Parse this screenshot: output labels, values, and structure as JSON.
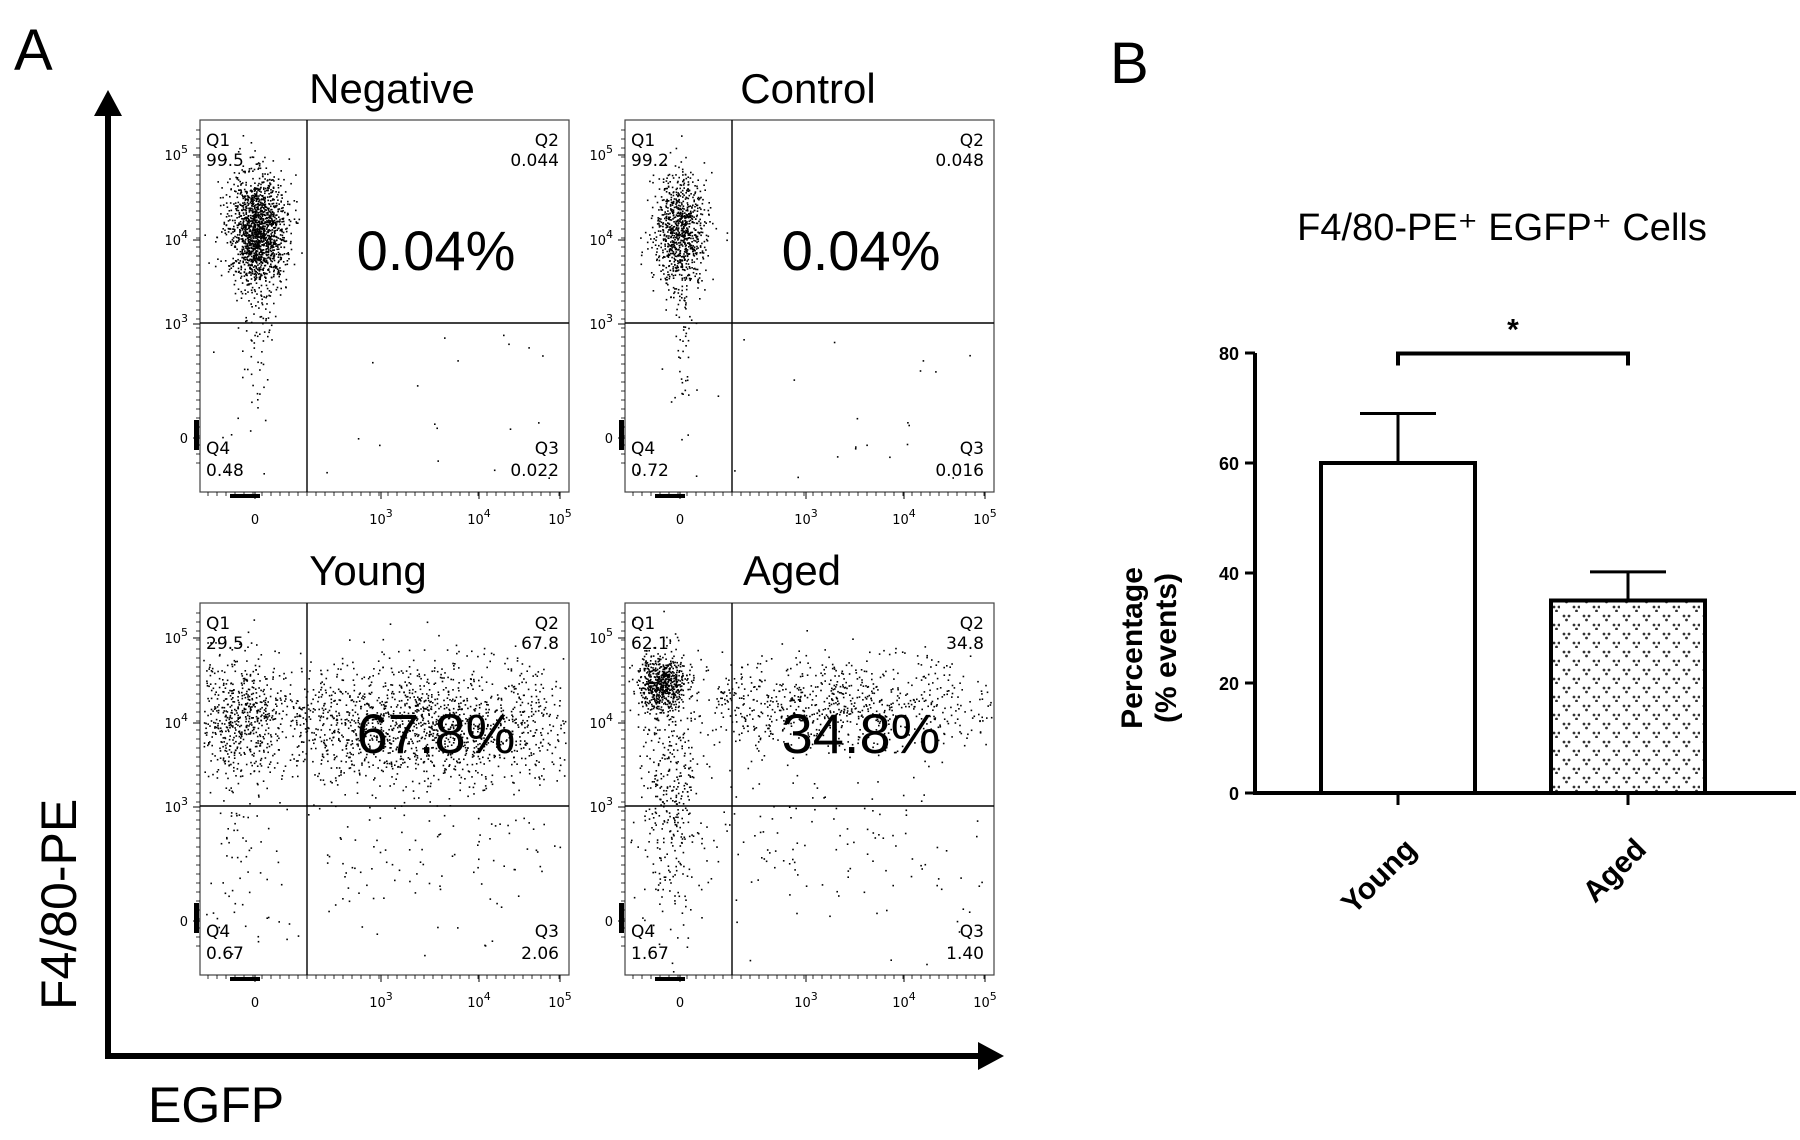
{
  "panel_a_label": "A",
  "panel_b_label": "B",
  "axis_y_label": "F4/80-PE",
  "axis_x_label": "EGFP",
  "flow_plots": [
    {
      "title": "Negative",
      "big_percent": "0.04%",
      "quadrants": {
        "q1_label": "Q1",
        "q1": "99.5",
        "q2_label": "Q2",
        "q2": "0.044",
        "q3_label": "Q3",
        "q3": "0.022",
        "q4_label": "Q4",
        "q4": "0.48"
      }
    },
    {
      "title": "Control",
      "big_percent": "0.04%",
      "quadrants": {
        "q1_label": "Q1",
        "q1": "99.2",
        "q2_label": "Q2",
        "q2": "0.048",
        "q3_label": "Q3",
        "q3": "0.016",
        "q4_label": "Q4",
        "q4": "0.72"
      }
    },
    {
      "title": "Young",
      "big_percent": "67.8%",
      "quadrants": {
        "q1_label": "Q1",
        "q1": "29.5",
        "q2_label": "Q2",
        "q2": "67.8",
        "q3_label": "Q3",
        "q3": "2.06",
        "q4_label": "Q4",
        "q4": "0.67"
      }
    },
    {
      "title": "Aged",
      "big_percent": "34.8%",
      "quadrants": {
        "q1_label": "Q1",
        "q1": "62.1",
        "q2_label": "Q2",
        "q2": "34.8",
        "q3_label": "Q3",
        "q3": "1.40",
        "q4_label": "Q4",
        "q4": "1.67"
      }
    }
  ],
  "flow_ticks": {
    "y": [
      "10^5",
      "10^4",
      "10^3",
      "0"
    ],
    "x": [
      "0",
      "10^3",
      "10^4",
      "10^5"
    ]
  },
  "chart_data": {
    "type": "bar",
    "title": "F4/80-PE⁺ EGFP⁺ Cells",
    "ylabel_line1": "Percentage",
    "ylabel_line2": "(% events)",
    "xlabel": "",
    "categories": [
      "Young",
      "Aged"
    ],
    "values": [
      60,
      35
    ],
    "errors": [
      9,
      5.2
    ],
    "ylim": [
      0,
      80
    ],
    "yticks": [
      0,
      20,
      40,
      60,
      80
    ],
    "significance": "*",
    "bar_fills": [
      "white",
      "dotted"
    ]
  }
}
